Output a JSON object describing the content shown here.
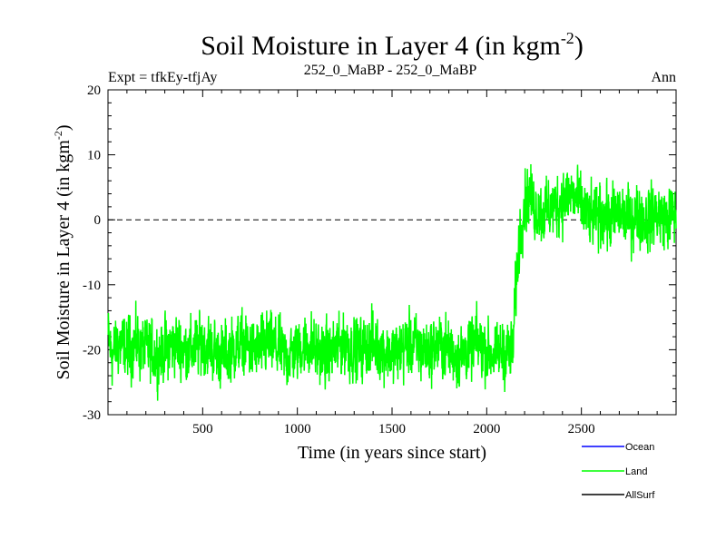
{
  "header": {
    "expt": "Expt = tfkEy-tfjAy",
    "period": "252_0_MaBP - 252_0_MaBP",
    "season": "Ann"
  },
  "chart_data": {
    "type": "line",
    "title": "Soil Moisture in Layer 4 (in kgm",
    "title_sup": "-2",
    "title_end": ")",
    "xlabel": "Time (in years since start)",
    "ylabel": "Soil Moisture in Layer 4 (in kgm",
    "ylabel_sup": "-2",
    "ylabel_end": ")",
    "xlim": [
      0,
      3000
    ],
    "ylim": [
      -30,
      20
    ],
    "xticks": [
      500,
      1000,
      1500,
      2000,
      2500
    ],
    "xtick_labels": [
      "500",
      "1000",
      "1500",
      "2000",
      "2500"
    ],
    "yticks": [
      -30,
      -20,
      -10,
      0,
      10,
      20
    ],
    "ytick_labels": [
      "-30",
      "-20",
      "-10",
      "0",
      "10",
      "20"
    ],
    "reference_line": {
      "y": 0,
      "style": "dashed"
    },
    "series": [
      {
        "name": "Land",
        "color": "#00ff00",
        "x": [
          0,
          25,
          50,
          100,
          150,
          200,
          250,
          300,
          350,
          400,
          450,
          500,
          550,
          600,
          650,
          700,
          750,
          800,
          850,
          900,
          950,
          1000,
          1050,
          1100,
          1150,
          1200,
          1250,
          1300,
          1350,
          1400,
          1450,
          1500,
          1550,
          1600,
          1650,
          1700,
          1750,
          1800,
          1850,
          1900,
          1950,
          2000,
          2050,
          2100,
          2125,
          2140,
          2150,
          2160,
          2170,
          2180,
          2200,
          2225,
          2250,
          2300,
          2350,
          2400,
          2450,
          2500,
          2550,
          2600,
          2650,
          2700,
          2750,
          2800,
          2850,
          2900,
          2950,
          3000
        ],
        "y": [
          -18,
          -21,
          -19,
          -20,
          -19,
          -20,
          -21,
          -20,
          -19,
          -20,
          -20,
          -19,
          -20,
          -21,
          -20,
          -19,
          -20,
          -20,
          -19,
          -20,
          -21,
          -20,
          -19,
          -20,
          -21,
          -20,
          -19,
          -20,
          -20,
          -19,
          -20,
          -21,
          -20,
          -19,
          -20,
          -20,
          -19,
          -20,
          -21,
          -20,
          -19,
          -20,
          -21,
          -20,
          -21,
          -20,
          -12,
          -8,
          -4,
          -1,
          3,
          4,
          2,
          1,
          2,
          3,
          4,
          2,
          0,
          1,
          0,
          1,
          0,
          1,
          0,
          1,
          0,
          1
        ],
        "noise_amplitude": 4
      },
      {
        "name": "Ocean",
        "color": "#0000ff"
      },
      {
        "name": "AllSurf",
        "color": "#000000"
      }
    ],
    "legend": {
      "position": "bottom-right",
      "entries": [
        "Ocean",
        "Land",
        "AllSurf"
      ]
    }
  }
}
